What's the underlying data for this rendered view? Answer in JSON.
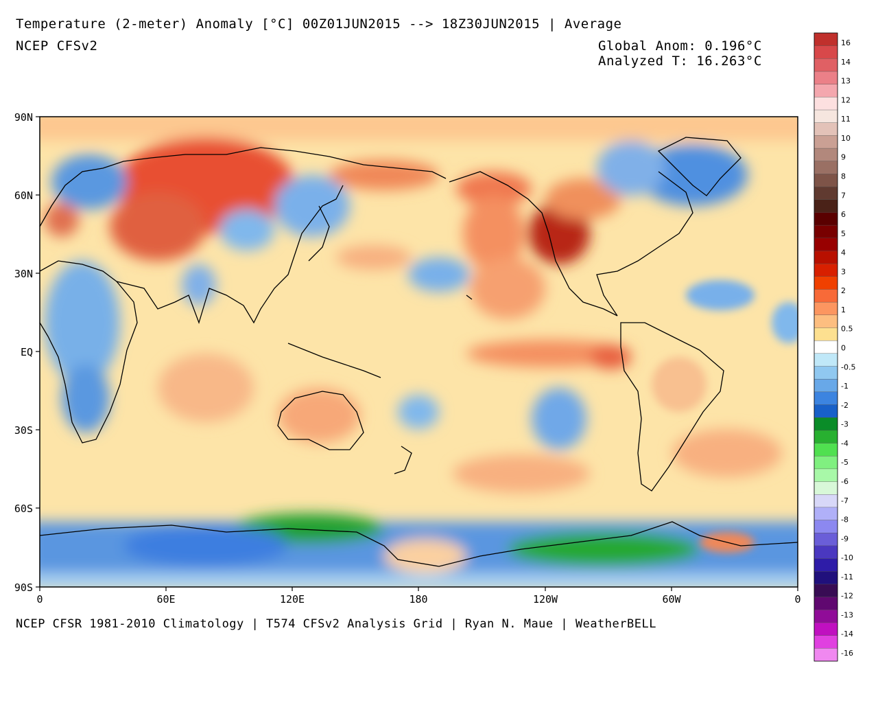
{
  "header": {
    "title": "Temperature (2-meter) Anomaly  [°C] 00Z01JUN2015 --> 18Z30JUN2015 | Average",
    "model": "NCEP CFSv2",
    "global_anom": "Global Anom: 0.196°C",
    "analyzed_t": "Analyzed T: 16.263°C"
  },
  "footer": {
    "credits": "NCEP CFSR 1981-2010 Climatology | T574 CFSv2 Analysis Grid | Ryan N. Maue | WeatherBELL"
  },
  "map": {
    "lat_labels": [
      "90N",
      "60N",
      "30N",
      "EQ",
      "30S",
      "60S",
      "90S"
    ],
    "lon_labels": [
      "0",
      "60E",
      "120E",
      "180",
      "120W",
      "60W",
      "0"
    ]
  },
  "colorbar": {
    "labels": [
      "16",
      "14",
      "13",
      "12",
      "11",
      "10",
      "9",
      "8",
      "7",
      "6",
      "5",
      "4",
      "3",
      "2",
      "1",
      "0.5",
      "0",
      "-0.5",
      "-1",
      "-2",
      "-3",
      "-4",
      "-5",
      "-6",
      "-7",
      "-8",
      "-9",
      "-10",
      "-11",
      "-12",
      "-13",
      "-14",
      "-16"
    ],
    "colors": [
      "#c0302c",
      "#d8484a",
      "#e06064",
      "#eb8088",
      "#f4a7ae",
      "#fde0e0",
      "#f6e6df",
      "#e3c2b8",
      "#caa094",
      "#b2887c",
      "#9a7064",
      "#7e5448",
      "#603a30",
      "#4a2218",
      "#5a0000",
      "#780000",
      "#980000",
      "#b81000",
      "#d82000",
      "#f04000",
      "#f86a38",
      "#fc9660",
      "#fdbe80",
      "#fde090",
      "#ffffff",
      "#c0e8f8",
      "#90c8f0",
      "#68a8e8",
      "#3c84e0",
      "#1860c8",
      "#0a8c28",
      "#28b030",
      "#50e050",
      "#80f080",
      "#a8f8a8",
      "#d8f8d8",
      "#d8d8f8",
      "#b0b0f8",
      "#8c88f0",
      "#6a5ed8",
      "#4a38c0",
      "#2e1ca8",
      "#20107c",
      "#380c54",
      "#600870",
      "#900c98",
      "#c010c0",
      "#e040e0",
      "#f088f0"
    ]
  }
}
